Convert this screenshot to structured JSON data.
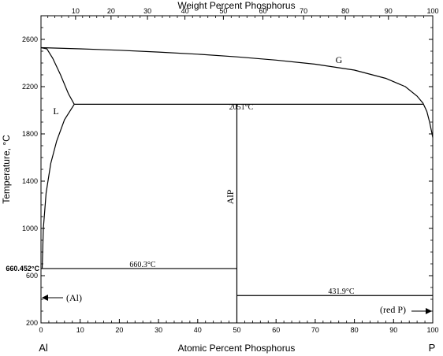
{
  "chart_data": {
    "type": "diagram",
    "title": "",
    "top_axis": {
      "label": "Weight Percent Phosphorus",
      "ticks": [
        "10",
        "20",
        "30",
        "40",
        "50",
        "60",
        "70",
        "80",
        "90",
        "100"
      ]
    },
    "bottom_axis": {
      "label": "Atomic Percent Phosphorus",
      "ticks": [
        "0",
        "10",
        "20",
        "30",
        "40",
        "50",
        "60",
        "70",
        "80",
        "90",
        "100"
      ],
      "range": [
        0,
        100
      ],
      "left_element": "Al",
      "right_element": "P"
    },
    "left_axis": {
      "label": "Temperature, °C",
      "ticks": [
        "200",
        "600",
        "1000",
        "1400",
        "1800",
        "2200",
        "2600"
      ],
      "range": [
        200,
        2800
      ],
      "special_tick": "660.452°C",
      "special_value": 660.452
    },
    "phase_labels": {
      "gas": "G",
      "liquid": "L",
      "compound": "AlP",
      "al_solid": "(Al)",
      "p_solid": "(red P)"
    },
    "invariants": [
      {
        "label": "2051°C",
        "temperature": 2051,
        "x_from": 8.5,
        "x_to": 97.5
      },
      {
        "label": "660.3°C",
        "temperature": 660.3,
        "x_from": 0,
        "x_to": 50
      },
      {
        "label": "431.9°C",
        "temperature": 431.9,
        "x_from": 50,
        "x_to": 100
      }
    ],
    "compound_line": {
      "x": 50,
      "t_from": 200,
      "t_to": 2051
    },
    "gas_boundary": [
      [
        0,
        2530
      ],
      [
        10,
        2520
      ],
      [
        20,
        2508
      ],
      [
        30,
        2493
      ],
      [
        40,
        2475
      ],
      [
        50,
        2452
      ],
      [
        60,
        2425
      ],
      [
        70,
        2390
      ],
      [
        80,
        2340
      ],
      [
        88,
        2270
      ],
      [
        93,
        2200
      ],
      [
        96,
        2120
      ],
      [
        97.5,
        2060
      ],
      [
        98.5,
        1990
      ],
      [
        99.2,
        1900
      ],
      [
        99.7,
        1820
      ],
      [
        100,
        1770
      ]
    ],
    "liquidus_upper": [
      [
        0,
        2530
      ],
      [
        1.5,
        2520
      ],
      [
        3,
        2440
      ],
      [
        5,
        2300
      ],
      [
        7,
        2140
      ],
      [
        8.5,
        2051
      ]
    ],
    "liquidus_lower": [
      [
        0.3,
        660
      ],
      [
        0.6,
        1000
      ],
      [
        1.3,
        1300
      ],
      [
        2.5,
        1550
      ],
      [
        4,
        1740
      ],
      [
        6,
        1920
      ],
      [
        8.5,
        2051
      ]
    ]
  }
}
